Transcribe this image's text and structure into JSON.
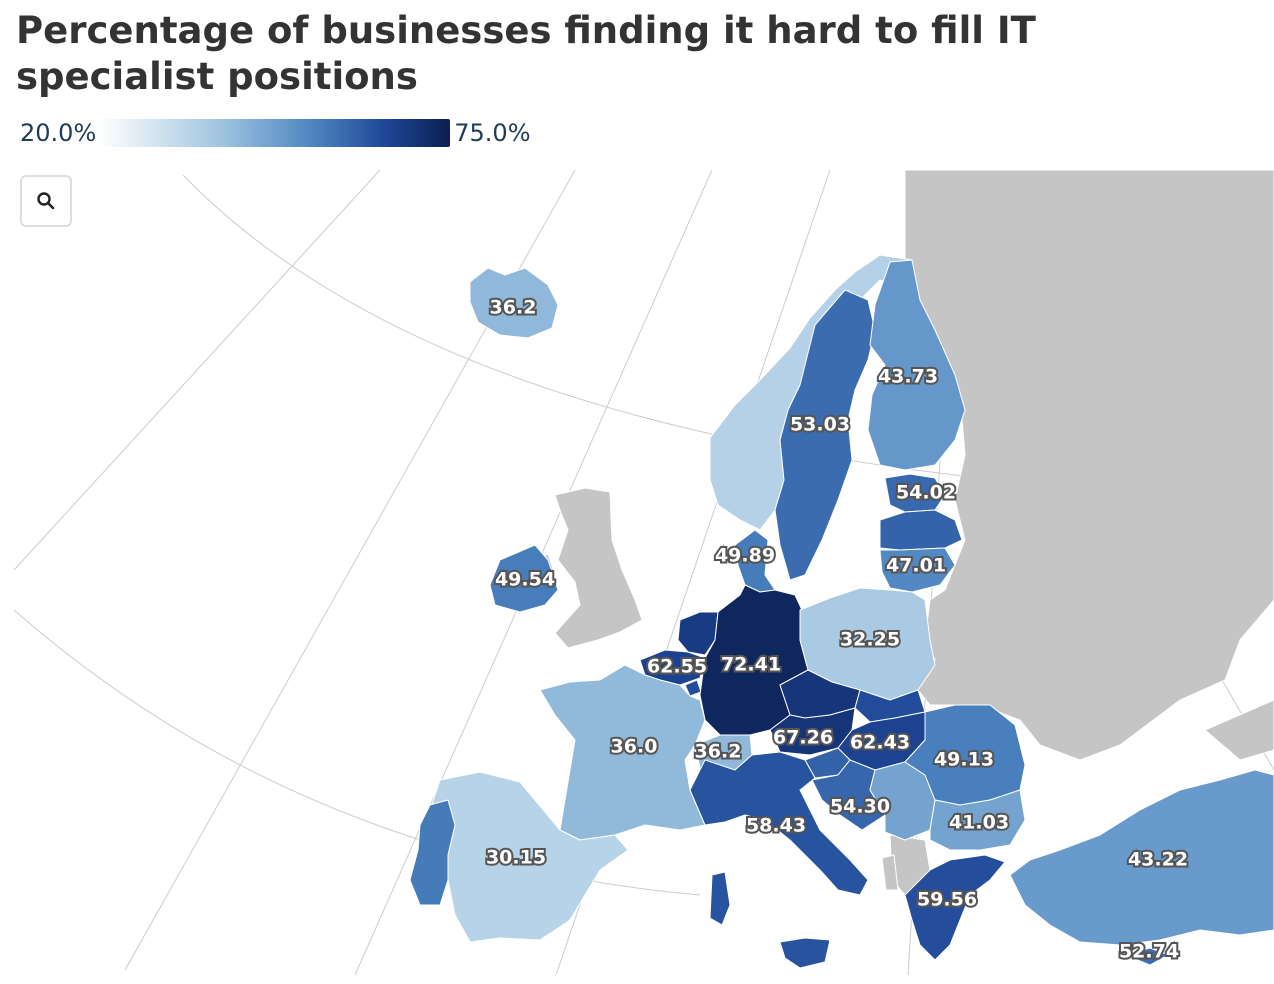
{
  "title": "Percentage of businesses finding it hard to fill IT specialist positions",
  "legend": {
    "min_label": "20.0%",
    "max_label": "75.0%",
    "min": 20.0,
    "max": 75.0
  },
  "zoom_icon": "search-icon",
  "colors": {
    "no_data": "#c6c5c6",
    "ramp": [
      "#ffffff",
      "#9ec3df",
      "#4f87c2",
      "#1e4596",
      "#0b1f52"
    ]
  },
  "chart_data": {
    "type": "choropleth",
    "unit": "%",
    "scale": [
      20.0,
      75.0
    ],
    "regions": [
      {
        "id": "iceland",
        "label": "36.2",
        "value": 36.2
      },
      {
        "id": "norway",
        "label": "",
        "value": 30.5
      },
      {
        "id": "sweden",
        "label": "53.03",
        "value": 53.03
      },
      {
        "id": "finland",
        "label": "43.73",
        "value": 43.73
      },
      {
        "id": "estonia",
        "label": "54.02",
        "value": 54.02
      },
      {
        "id": "latvia",
        "label": "",
        "value": 55.0
      },
      {
        "id": "lithuania",
        "label": "47.01",
        "value": 47.01
      },
      {
        "id": "denmark",
        "label": "49.89",
        "value": 49.89
      },
      {
        "id": "ireland",
        "label": "49.54",
        "value": 49.54
      },
      {
        "id": "netherlands",
        "label": "",
        "value": 65.0
      },
      {
        "id": "belgium",
        "label": "62.55",
        "value": 62.55
      },
      {
        "id": "luxembourg",
        "label": "",
        "value": 60.0
      },
      {
        "id": "germany",
        "label": "72.41",
        "value": 72.41
      },
      {
        "id": "poland",
        "label": "32.25",
        "value": 32.25
      },
      {
        "id": "czechia",
        "label": "",
        "value": 67.0
      },
      {
        "id": "slovakia",
        "label": "",
        "value": 60.0
      },
      {
        "id": "austria",
        "label": "67.26",
        "value": 67.26
      },
      {
        "id": "hungary",
        "label": "62.43",
        "value": 62.43
      },
      {
        "id": "slovenia",
        "label": "",
        "value": 55.0
      },
      {
        "id": "croatia",
        "label": "54.30",
        "value": 54.3
      },
      {
        "id": "serbia",
        "label": "",
        "value": 41.0
      },
      {
        "id": "romania",
        "label": "49.13",
        "value": 49.13
      },
      {
        "id": "bulgaria",
        "label": "41.03",
        "value": 41.03
      },
      {
        "id": "france",
        "label": "36.0",
        "value": 36.0
      },
      {
        "id": "switzerland",
        "label": "36.2",
        "value": 36.2
      },
      {
        "id": "italy",
        "label": "58.43",
        "value": 58.43
      },
      {
        "id": "spain",
        "label": "30.15",
        "value": 30.15
      },
      {
        "id": "portugal",
        "label": "",
        "value": 50.0
      },
      {
        "id": "greece",
        "label": "59.56",
        "value": 59.56
      },
      {
        "id": "turkey",
        "label": "43.22",
        "value": 43.22
      },
      {
        "id": "cyprus",
        "label": "52.74",
        "value": 52.74
      }
    ]
  }
}
